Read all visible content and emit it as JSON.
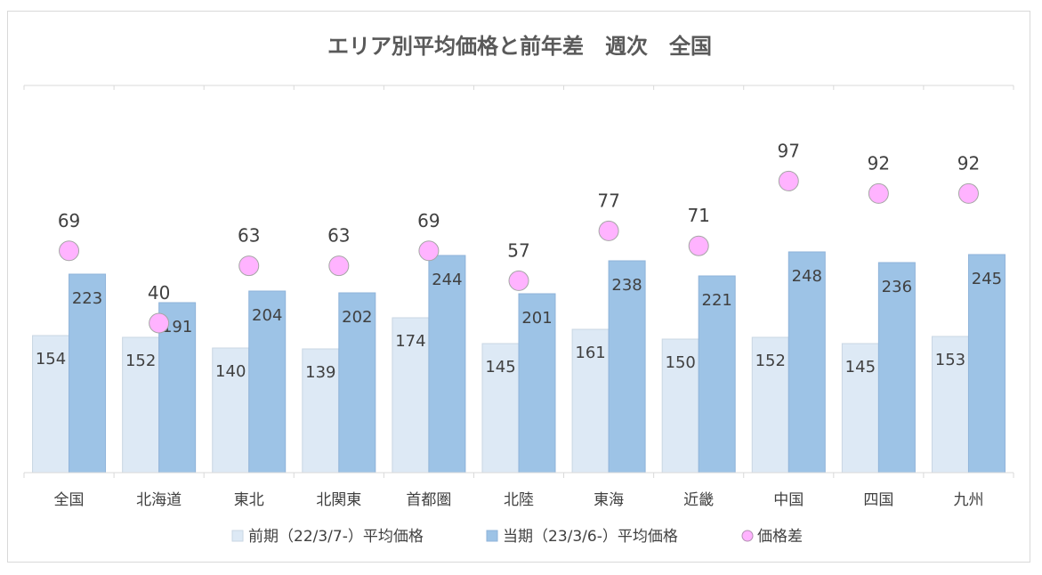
{
  "chart_data": {
    "type": "bar",
    "title": "エリア別平均価格と前年差　週次　全国",
    "categories": [
      "全国",
      "北海道",
      "東北",
      "北関東",
      "首都圏",
      "北陸",
      "東海",
      "近畿",
      "中国",
      "四国",
      "九州"
    ],
    "series": [
      {
        "name": "前期（22/3/7-）平均価格",
        "type": "bar",
        "color": "#dde9f5",
        "values": [
          154,
          152,
          140,
          139,
          174,
          145,
          161,
          150,
          152,
          145,
          153
        ]
      },
      {
        "name": "当期（23/3/6-）平均価格",
        "type": "bar",
        "color": "#9dc3e6",
        "values": [
          223,
          191,
          204,
          202,
          244,
          201,
          238,
          221,
          248,
          236,
          245
        ]
      },
      {
        "name": "価格差",
        "type": "scatter",
        "color": "#ffb3ff",
        "values": [
          69,
          40,
          63,
          63,
          69,
          57,
          77,
          71,
          97,
          92,
          92
        ]
      }
    ],
    "xlabel": "",
    "ylabel": "",
    "ylim": [
      0,
      300
    ],
    "grid": false,
    "legend": "bottom"
  }
}
